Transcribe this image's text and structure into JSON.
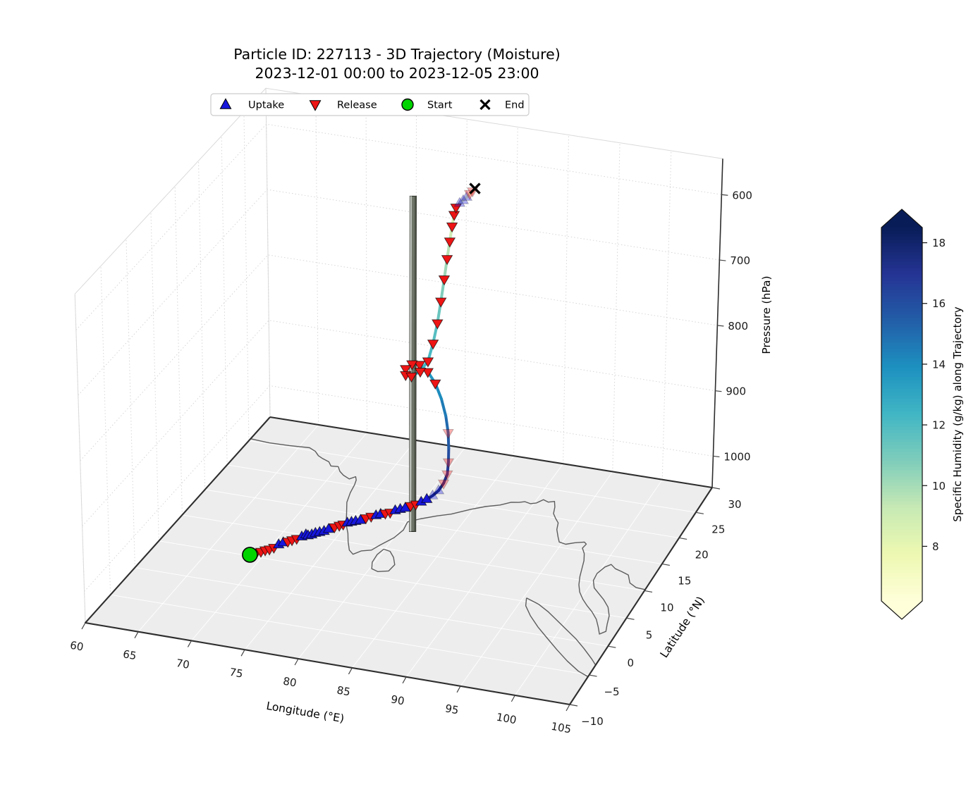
{
  "title": {
    "line1": "Particle ID: 227113 - 3D Trajectory (Moisture)",
    "line2": "2023-12-01 00:00 to 2023-12-05 23:00"
  },
  "legend": {
    "items": [
      {
        "label": "Uptake",
        "marker": "triangle-up",
        "color": "#1717dd"
      },
      {
        "label": "Release",
        "marker": "triangle-down",
        "color": "#ee1515"
      },
      {
        "label": "Start",
        "marker": "circle",
        "color": "#00d400"
      },
      {
        "label": "End",
        "marker": "x",
        "color": "#000000"
      }
    ]
  },
  "axes": {
    "xlabel": "Longitude (°E)",
    "ylabel": "Latitude (°N)",
    "zlabel": "Pressure (hPa)",
    "xticks": [
      60,
      65,
      70,
      75,
      80,
      85,
      90,
      95,
      100,
      105
    ],
    "yticks": [
      -10,
      -5,
      0,
      5,
      10,
      15,
      20,
      25,
      30
    ],
    "zticks": [
      600,
      700,
      800,
      900,
      1000
    ],
    "xlim": [
      60,
      105
    ],
    "ylim": [
      -10,
      30
    ],
    "zlim": [
      545,
      1048
    ],
    "z_inverted": true
  },
  "colorbar": {
    "label": "Specific Humidity (g/kg) along Trajectory",
    "ticks": [
      8,
      10,
      12,
      14,
      16,
      18
    ],
    "vmin": 6.2,
    "vmax": 18.5,
    "colormap": "YlGnBu",
    "extend": "both"
  },
  "pillar": {
    "lon": 81.2,
    "lat": 13.6,
    "p_base": 1048,
    "p_top": 535,
    "color": "#6e7568"
  },
  "chart_data": {
    "type": "scatter",
    "subtype": "3d-trajectory",
    "title": "Particle ID: 227113 - 3D Trajectory (Moisture)",
    "subtitle": "2023-12-01 00:00 to 2023-12-05 23:00",
    "xlabel": "Longitude (°E)",
    "ylabel": "Latitude (°N)",
    "zlabel": "Pressure (hPa)",
    "colorbar_label": "Specific Humidity (g/kg) along Trajectory",
    "point_format": [
      "lon_degE",
      "lat_degN",
      "pressure_hPa",
      "specific_humidity_g_per_kg",
      "event"
    ],
    "event_codes": {
      "S": "start",
      "E": "end",
      "U": "uptake",
      "R": "release",
      "u": "uptake-faded",
      "r": "release-faded",
      "": "none"
    },
    "points": [
      [
        71.0,
        0.3,
        1002,
        17.3,
        "S"
      ],
      [
        71.45,
        0.75,
        1001,
        17.1,
        "R"
      ],
      [
        71.75,
        1.0,
        1001,
        17.0,
        "R"
      ],
      [
        72.05,
        1.25,
        1000,
        16.9,
        "R"
      ],
      [
        72.35,
        1.5,
        1000,
        16.8,
        "R"
      ],
      [
        72.6,
        1.9,
        1000,
        17.0,
        "R"
      ],
      [
        72.85,
        2.4,
        999,
        17.2,
        "U"
      ],
      [
        73.1,
        2.85,
        999,
        17.1,
        "U"
      ],
      [
        73.4,
        3.15,
        999,
        16.9,
        "R"
      ],
      [
        73.7,
        3.4,
        998,
        16.8,
        "R"
      ],
      [
        74.0,
        3.75,
        998,
        17.0,
        "R"
      ],
      [
        74.3,
        4.2,
        998,
        17.3,
        "U"
      ],
      [
        74.55,
        4.55,
        997,
        17.5,
        "U"
      ],
      [
        74.8,
        4.45,
        997,
        17.6,
        "U"
      ],
      [
        75.05,
        4.7,
        997,
        17.8,
        "U"
      ],
      [
        75.3,
        4.95,
        996,
        17.9,
        "U"
      ],
      [
        75.6,
        5.2,
        996,
        18.0,
        "U"
      ],
      [
        75.9,
        5.5,
        996,
        18.1,
        "U"
      ],
      [
        76.2,
        5.85,
        995,
        18.2,
        "U"
      ],
      [
        76.55,
        6.35,
        995,
        18.0,
        "R"
      ],
      [
        76.85,
        6.75,
        995,
        17.9,
        "R"
      ],
      [
        77.1,
        7.05,
        995,
        18.0,
        "R"
      ],
      [
        77.4,
        7.3,
        994,
        18.1,
        "U"
      ],
      [
        77.7,
        7.55,
        994,
        18.2,
        "U"
      ],
      [
        78.0,
        7.8,
        994,
        18.3,
        "U"
      ],
      [
        78.35,
        8.1,
        994,
        18.2,
        "U"
      ],
      [
        78.7,
        8.5,
        993,
        18.0,
        "R"
      ],
      [
        79.05,
        8.9,
        993,
        18.1,
        "R"
      ],
      [
        79.4,
        9.2,
        993,
        18.3,
        "U"
      ],
      [
        79.75,
        9.45,
        992,
        18.2,
        "U"
      ],
      [
        80.1,
        9.7,
        992,
        18.0,
        "R"
      ],
      [
        80.45,
        10.0,
        992,
        17.9,
        "R"
      ],
      [
        80.8,
        10.35,
        991,
        18.1,
        "U"
      ],
      [
        81.15,
        10.7,
        991,
        18.3,
        "U"
      ],
      [
        81.5,
        11.05,
        991,
        18.4,
        "U"
      ],
      [
        81.85,
        11.45,
        990,
        18.2,
        "R"
      ],
      [
        82.2,
        11.85,
        990,
        18.0,
        "R"
      ],
      [
        82.55,
        12.3,
        989,
        18.1,
        "U"
      ],
      [
        82.9,
        12.8,
        988,
        18.3,
        "U"
      ],
      [
        83.25,
        13.35,
        986,
        18.2,
        "u"
      ],
      [
        83.6,
        13.95,
        982,
        17.9,
        "u"
      ],
      [
        83.85,
        14.55,
        975,
        17.5,
        "r"
      ],
      [
        84.0,
        15.1,
        965,
        17.0,
        "r"
      ],
      [
        83.85,
        15.75,
        952,
        16.4,
        "r"
      ],
      [
        83.6,
        16.45,
        937,
        15.8,
        ""
      ],
      [
        83.25,
        17.2,
        920,
        15.3,
        "r"
      ],
      [
        82.7,
        18.0,
        902,
        14.8,
        ""
      ],
      [
        81.95,
        18.8,
        884,
        14.3,
        ""
      ],
      [
        81.05,
        19.55,
        868,
        13.8,
        "R"
      ],
      [
        80.1,
        20.1,
        857,
        13.5,
        "R"
      ],
      [
        79.15,
        20.45,
        851,
        13.2,
        "R"
      ],
      [
        78.4,
        20.45,
        852,
        13.0,
        "R"
      ],
      [
        77.95,
        20.0,
        857,
        12.8,
        "R"
      ],
      [
        78.15,
        19.5,
        862,
        12.7,
        "R"
      ],
      [
        78.8,
        19.3,
        861,
        12.6,
        "R"
      ],
      [
        79.55,
        19.6,
        854,
        12.5,
        "R"
      ],
      [
        80.05,
        20.25,
        842,
        12.3,
        "R"
      ],
      [
        80.25,
        21.0,
        820,
        12.0,
        "R"
      ],
      [
        80.4,
        21.7,
        794,
        11.6,
        "R"
      ],
      [
        80.5,
        22.3,
        765,
        11.1,
        "R"
      ],
      [
        80.6,
        22.85,
        735,
        10.5,
        "R"
      ],
      [
        80.7,
        23.3,
        707,
        9.9,
        "R"
      ],
      [
        80.8,
        23.7,
        683,
        9.3,
        "R"
      ],
      [
        80.9,
        24.0,
        662,
        8.8,
        "R"
      ],
      [
        81.0,
        24.25,
        646,
        8.4,
        "R"
      ],
      [
        81.1,
        24.45,
        636,
        8.2,
        "R"
      ],
      [
        81.4,
        24.6,
        630,
        8.1,
        "u"
      ],
      [
        81.7,
        24.72,
        626,
        8.0,
        "u"
      ],
      [
        82.0,
        24.84,
        621,
        8.0,
        "u"
      ],
      [
        82.25,
        24.93,
        616,
        7.8,
        "r"
      ],
      [
        82.5,
        25.0,
        612,
        7.6,
        "r"
      ],
      [
        82.7,
        25.08,
        608,
        7.4,
        "E"
      ]
    ]
  },
  "map": {
    "coastlines": {
      "south_asia_mainland": [
        [
          60,
          25.4
        ],
        [
          62,
          25.2
        ],
        [
          64,
          25.3
        ],
        [
          66,
          25.5
        ],
        [
          66.8,
          25.0
        ],
        [
          67.4,
          24.3
        ],
        [
          68.0,
          23.9
        ],
        [
          68.8,
          23.5
        ],
        [
          69.3,
          22.8
        ],
        [
          70.0,
          22.9
        ],
        [
          70.5,
          22.1
        ],
        [
          71.1,
          21.5
        ],
        [
          71.9,
          21.0
        ],
        [
          72.3,
          21.6
        ],
        [
          72.6,
          21.0
        ],
        [
          72.8,
          20.1
        ],
        [
          73.0,
          18.6
        ],
        [
          73.4,
          16.8
        ],
        [
          74.2,
          14.8
        ],
        [
          74.9,
          13.0
        ],
        [
          75.7,
          11.5
        ],
        [
          76.3,
          10.1
        ],
        [
          77.0,
          8.7
        ],
        [
          77.6,
          8.1
        ],
        [
          78.1,
          8.9
        ],
        [
          78.9,
          9.3
        ],
        [
          79.3,
          10.4
        ],
        [
          80.0,
          12.0
        ],
        [
          80.3,
          13.6
        ],
        [
          80.1,
          15.1
        ],
        [
          81.0,
          16.0
        ],
        [
          82.3,
          17.0
        ],
        [
          83.4,
          17.7
        ],
        [
          84.8,
          19.1
        ],
        [
          85.9,
          20.0
        ],
        [
          87.1,
          20.7
        ],
        [
          87.9,
          21.5
        ],
        [
          88.6,
          21.7
        ],
        [
          89.1,
          22.0
        ],
        [
          89.7,
          21.8
        ],
        [
          90.2,
          22.1
        ],
        [
          90.6,
          22.9
        ],
        [
          91.2,
          22.6
        ],
        [
          91.7,
          22.9
        ],
        [
          92.1,
          21.9
        ],
        [
          92.4,
          20.7
        ],
        [
          92.9,
          19.9
        ],
        [
          93.4,
          19.2
        ],
        [
          93.7,
          18.0
        ],
        [
          94.3,
          16.7
        ],
        [
          94.7,
          15.9
        ],
        [
          95.4,
          15.7
        ],
        [
          96.1,
          16.2
        ],
        [
          96.9,
          16.6
        ],
        [
          97.2,
          16.3
        ],
        [
          97.1,
          15.5
        ],
        [
          97.6,
          14.6
        ],
        [
          98.0,
          13.4
        ],
        [
          98.3,
          12.0
        ],
        [
          98.6,
          10.6
        ],
        [
          99.0,
          9.2
        ],
        [
          99.5,
          8.0
        ],
        [
          100.2,
          6.9
        ],
        [
          100.9,
          6.0
        ],
        [
          101.7,
          5.1
        ],
        [
          102.5,
          4.0
        ],
        [
          103.1,
          2.8
        ],
        [
          103.6,
          1.7
        ],
        [
          104.0,
          2.3
        ],
        [
          103.7,
          3.5
        ],
        [
          103.4,
          4.9
        ],
        [
          102.8,
          6.3
        ],
        [
          102.0,
          7.4
        ],
        [
          101.2,
          8.3
        ],
        [
          100.5,
          9.1
        ],
        [
          100.0,
          10.3
        ],
        [
          99.9,
          11.6
        ],
        [
          100.2,
          12.9
        ],
        [
          100.6,
          13.5
        ],
        [
          101.2,
          12.9
        ],
        [
          101.9,
          12.6
        ],
        [
          102.7,
          12.2
        ],
        [
          103.3,
          10.9
        ],
        [
          104.1,
          10.3
        ],
        [
          105.0,
          10.2
        ]
      ],
      "sri_lanka": [
        [
          79.9,
          9.8
        ],
        [
          80.6,
          9.6
        ],
        [
          81.3,
          8.7
        ],
        [
          81.9,
          7.5
        ],
        [
          81.8,
          6.3
        ],
        [
          80.9,
          5.9
        ],
        [
          80.2,
          6.2
        ],
        [
          79.8,
          7.3
        ],
        [
          79.7,
          8.7
        ],
        [
          79.9,
          9.8
        ]
      ],
      "sumatra": [
        [
          95.3,
          5.6
        ],
        [
          96.7,
          4.9
        ],
        [
          98.0,
          3.9
        ],
        [
          99.3,
          2.7
        ],
        [
          100.6,
          1.5
        ],
        [
          101.9,
          0.3
        ],
        [
          103.1,
          -1.0
        ],
        [
          104.3,
          -2.4
        ],
        [
          105.0,
          -3.3
        ],
        [
          105.0,
          -5.3
        ],
        [
          103.9,
          -4.7
        ],
        [
          102.4,
          -3.4
        ],
        [
          100.9,
          -1.9
        ],
        [
          99.4,
          -0.3
        ],
        [
          98.0,
          1.2
        ],
        [
          96.7,
          2.8
        ],
        [
          95.7,
          4.3
        ],
        [
          95.3,
          5.6
        ]
      ]
    }
  }
}
